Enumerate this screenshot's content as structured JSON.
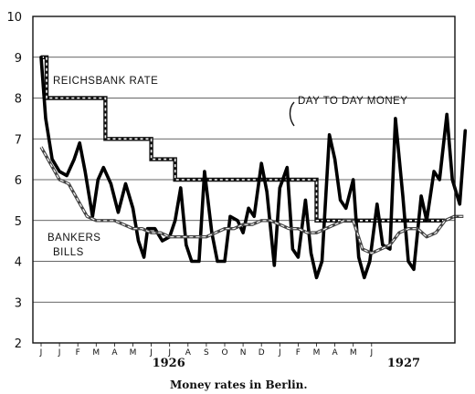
{
  "chart_data": {
    "type": "line",
    "title": "",
    "caption": "Money rates in Berlin.",
    "xlabel": "",
    "ylabel": "",
    "ylim": [
      2,
      10
    ],
    "yticks": [
      "2",
      "3",
      "4",
      "5",
      "6",
      "7",
      "8",
      "9",
      "10"
    ],
    "grid": "horizontal",
    "months": [
      "J",
      "J",
      "F",
      "M",
      "A",
      "M",
      "J",
      "J",
      "A",
      "S",
      "O",
      "N",
      "D",
      "J",
      "F",
      "M",
      "A",
      "M",
      "J"
    ],
    "years": [
      "1926",
      "1927"
    ],
    "series": [
      {
        "name": "REICHSBANK RATE",
        "style": "stepped-dashed",
        "points": [
          [
            0,
            9
          ],
          [
            0.3,
            9
          ],
          [
            0.3,
            8
          ],
          [
            3.5,
            8
          ],
          [
            3.5,
            7
          ],
          [
            6,
            7
          ],
          [
            6,
            6.5
          ],
          [
            7.3,
            6.5
          ],
          [
            7.3,
            6
          ],
          [
            15,
            6
          ],
          [
            15,
            5
          ],
          [
            22,
            5
          ]
        ]
      },
      {
        "name": "DAY TO DAY MONEY",
        "style": "heavy",
        "points": [
          [
            0,
            9
          ],
          [
            0.25,
            7.5
          ],
          [
            0.6,
            6.5
          ],
          [
            1,
            6.2
          ],
          [
            1.4,
            6.1
          ],
          [
            1.8,
            6.5
          ],
          [
            2.1,
            6.9
          ],
          [
            2.4,
            6.2
          ],
          [
            2.8,
            5.1
          ],
          [
            3.1,
            6
          ],
          [
            3.4,
            6.3
          ],
          [
            3.8,
            5.9
          ],
          [
            4.2,
            5.2
          ],
          [
            4.6,
            5.9
          ],
          [
            5.0,
            5.3
          ],
          [
            5.3,
            4.5
          ],
          [
            5.6,
            4.1
          ],
          [
            5.8,
            4.8
          ],
          [
            6.2,
            4.8
          ],
          [
            6.6,
            4.5
          ],
          [
            7.0,
            4.6
          ],
          [
            7.3,
            5.0
          ],
          [
            7.6,
            5.8
          ],
          [
            7.9,
            4.4
          ],
          [
            8.2,
            4.0
          ],
          [
            8.6,
            4.0
          ],
          [
            8.9,
            6.2
          ],
          [
            9.3,
            4.7
          ],
          [
            9.6,
            4.0
          ],
          [
            10.0,
            4.0
          ],
          [
            10.3,
            5.1
          ],
          [
            10.7,
            5.0
          ],
          [
            11.0,
            4.7
          ],
          [
            11.3,
            5.3
          ],
          [
            11.6,
            5.1
          ],
          [
            12.0,
            6.4
          ],
          [
            12.3,
            5.7
          ],
          [
            12.7,
            3.9
          ],
          [
            13.0,
            5.8
          ],
          [
            13.4,
            6.3
          ],
          [
            13.7,
            4.3
          ],
          [
            14.0,
            4.1
          ],
          [
            14.4,
            5.5
          ],
          [
            14.7,
            4.2
          ],
          [
            15.0,
            3.6
          ],
          [
            15.3,
            4.0
          ],
          [
            15.7,
            7.1
          ],
          [
            16.0,
            6.5
          ],
          [
            16.3,
            5.5
          ],
          [
            16.6,
            5.3
          ],
          [
            17.0,
            6.0
          ],
          [
            17.3,
            4.1
          ],
          [
            17.6,
            3.6
          ],
          [
            17.9,
            4.0
          ],
          [
            18.3,
            5.4
          ],
          [
            18.6,
            4.4
          ],
          [
            19.0,
            4.3
          ],
          [
            19.3,
            7.5
          ],
          [
            19.7,
            5.6
          ],
          [
            20.0,
            4.0
          ],
          [
            20.3,
            3.8
          ],
          [
            20.7,
            5.6
          ],
          [
            21.0,
            5.0
          ],
          [
            21.4,
            6.2
          ],
          [
            21.7,
            6.0
          ],
          [
            22.1,
            7.6
          ],
          [
            22.4,
            6.0
          ],
          [
            22.8,
            5.4
          ],
          [
            23.1,
            7.2
          ]
        ]
      },
      {
        "name": "BANKERS BILLS",
        "style": "double-dashed",
        "points": [
          [
            0,
            6.8
          ],
          [
            0.5,
            6.4
          ],
          [
            1.0,
            6.0
          ],
          [
            1.5,
            5.9
          ],
          [
            2.0,
            5.5
          ],
          [
            2.5,
            5.1
          ],
          [
            3.0,
            5.0
          ],
          [
            3.5,
            5.0
          ],
          [
            4.0,
            5.0
          ],
          [
            4.5,
            4.9
          ],
          [
            5.0,
            4.8
          ],
          [
            5.5,
            4.8
          ],
          [
            6.0,
            4.7
          ],
          [
            6.5,
            4.7
          ],
          [
            7.0,
            4.6
          ],
          [
            7.5,
            4.6
          ],
          [
            8.0,
            4.6
          ],
          [
            8.5,
            4.6
          ],
          [
            9.0,
            4.6
          ],
          [
            9.5,
            4.7
          ],
          [
            10.0,
            4.8
          ],
          [
            10.5,
            4.8
          ],
          [
            11.0,
            4.9
          ],
          [
            11.5,
            4.9
          ],
          [
            12.0,
            5.0
          ],
          [
            12.5,
            5.0
          ],
          [
            13.0,
            4.9
          ],
          [
            13.5,
            4.8
          ],
          [
            14.0,
            4.8
          ],
          [
            14.5,
            4.7
          ],
          [
            15.0,
            4.7
          ],
          [
            15.5,
            4.8
          ],
          [
            16.0,
            4.9
          ],
          [
            16.5,
            5.0
          ],
          [
            17.0,
            5.0
          ],
          [
            17.5,
            4.3
          ],
          [
            18.0,
            4.2
          ],
          [
            18.5,
            4.3
          ],
          [
            19.0,
            4.4
          ],
          [
            19.5,
            4.7
          ],
          [
            20.0,
            4.8
          ],
          [
            20.5,
            4.8
          ],
          [
            21.0,
            4.6
          ],
          [
            21.5,
            4.7
          ],
          [
            22.0,
            5.0
          ],
          [
            22.5,
            5.1
          ],
          [
            23.0,
            5.1
          ]
        ]
      }
    ]
  },
  "labels": {
    "reichsbank": "REICHSBANK RATE",
    "day_to_day": "DAY TO DAY MONEY",
    "bankers_line1": "BANKERS",
    "bankers_line2": "BILLS"
  }
}
